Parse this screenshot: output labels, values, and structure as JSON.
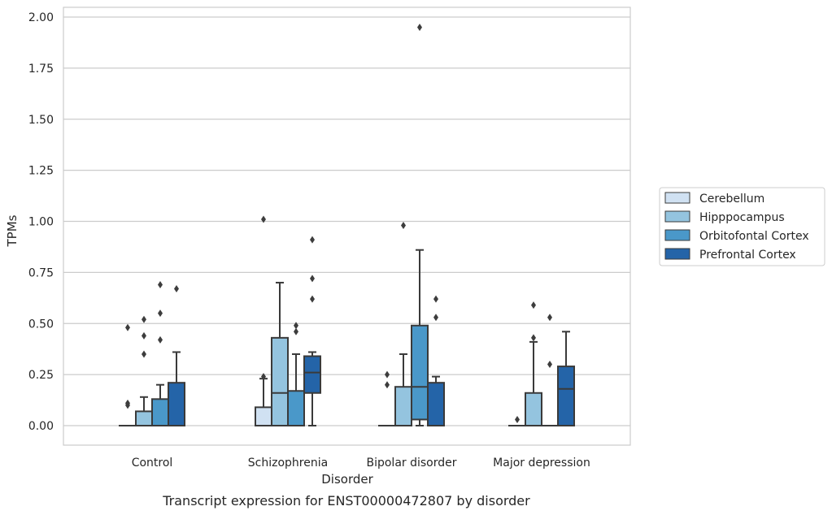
{
  "chart_data": {
    "type": "box",
    "caption": "Transcript expression for ENST00000472807 by disorder",
    "xlabel": "Disorder",
    "ylabel": "TPMs",
    "ylim": [
      -0.1,
      2.05
    ],
    "yticks": [
      "0.00",
      "0.25",
      "0.50",
      "0.75",
      "1.00",
      "1.25",
      "1.50",
      "1.75",
      "2.00"
    ],
    "ytick_values": [
      0,
      0.25,
      0.5,
      0.75,
      1.0,
      1.25,
      1.5,
      1.75,
      2.0
    ],
    "grid": "horizontal",
    "legend_position": "right",
    "categories": [
      "Control",
      "Schizophrenia",
      "Bipolar disorder",
      "Major depression"
    ],
    "series": [
      {
        "name": "Cerebellum",
        "color": "#d0e1f2",
        "boxes": [
          {
            "q1": 0,
            "median": 0,
            "q3": 0,
            "whisker_low": 0,
            "whisker_high": 0,
            "outliers": [
              0.48,
              0.11,
              0.1
            ]
          },
          {
            "q1": 0,
            "median": 0,
            "q3": 0.09,
            "whisker_low": 0,
            "whisker_high": 0.23,
            "outliers": [
              1.01,
              0.24
            ]
          },
          {
            "q1": 0,
            "median": 0,
            "q3": 0,
            "whisker_low": 0,
            "whisker_high": 0,
            "outliers": [
              0.25,
              0.2
            ]
          },
          {
            "q1": 0,
            "median": 0,
            "q3": 0,
            "whisker_low": 0,
            "whisker_high": 0,
            "outliers": [
              0.03
            ]
          }
        ]
      },
      {
        "name": "Hipppocampus",
        "color": "#94c4df",
        "boxes": [
          {
            "q1": 0,
            "median": 0,
            "q3": 0.07,
            "whisker_low": 0,
            "whisker_high": 0.14,
            "outliers": [
              0.52,
              0.44,
              0.35
            ]
          },
          {
            "q1": 0,
            "median": 0.16,
            "q3": 0.43,
            "whisker_low": 0,
            "whisker_high": 0.7,
            "outliers": []
          },
          {
            "q1": 0,
            "median": 0,
            "q3": 0.19,
            "whisker_low": 0,
            "whisker_high": 0.35,
            "outliers": [
              0.98
            ]
          },
          {
            "q1": 0,
            "median": 0,
            "q3": 0.16,
            "whisker_low": 0,
            "whisker_high": 0.41,
            "outliers": [
              0.59,
              0.43
            ]
          }
        ]
      },
      {
        "name": "Orbitofontal Cortex",
        "color": "#4a98c9",
        "boxes": [
          {
            "q1": 0,
            "median": 0,
            "q3": 0.13,
            "whisker_low": 0,
            "whisker_high": 0.2,
            "outliers": [
              0.69,
              0.55,
              0.42
            ]
          },
          {
            "q1": 0,
            "median": 0,
            "q3": 0.17,
            "whisker_low": 0,
            "whisker_high": 0.35,
            "outliers": [
              0.49,
              0.46
            ]
          },
          {
            "q1": 0.03,
            "median": 0.19,
            "q3": 0.49,
            "whisker_low": 0,
            "whisker_high": 0.86,
            "outliers": [
              1.95
            ]
          },
          {
            "q1": 0,
            "median": 0,
            "q3": 0,
            "whisker_low": 0,
            "whisker_high": 0,
            "outliers": [
              0.53,
              0.3
            ]
          }
        ]
      },
      {
        "name": "Prefrontal Cortex",
        "color": "#2464a8",
        "boxes": [
          {
            "q1": 0,
            "median": 0,
            "q3": 0.21,
            "whisker_low": 0,
            "whisker_high": 0.36,
            "outliers": [
              0.67
            ]
          },
          {
            "q1": 0.16,
            "median": 0.26,
            "q3": 0.34,
            "whisker_low": 0,
            "whisker_high": 0.36,
            "outliers": [
              0.91,
              0.72,
              0.62
            ]
          },
          {
            "q1": 0,
            "median": 0,
            "q3": 0.21,
            "whisker_low": 0,
            "whisker_high": 0.24,
            "outliers": [
              0.62,
              0.53
            ]
          },
          {
            "q1": 0,
            "median": 0.18,
            "q3": 0.29,
            "whisker_low": 0,
            "whisker_high": 0.46,
            "outliers": []
          }
        ]
      }
    ]
  }
}
